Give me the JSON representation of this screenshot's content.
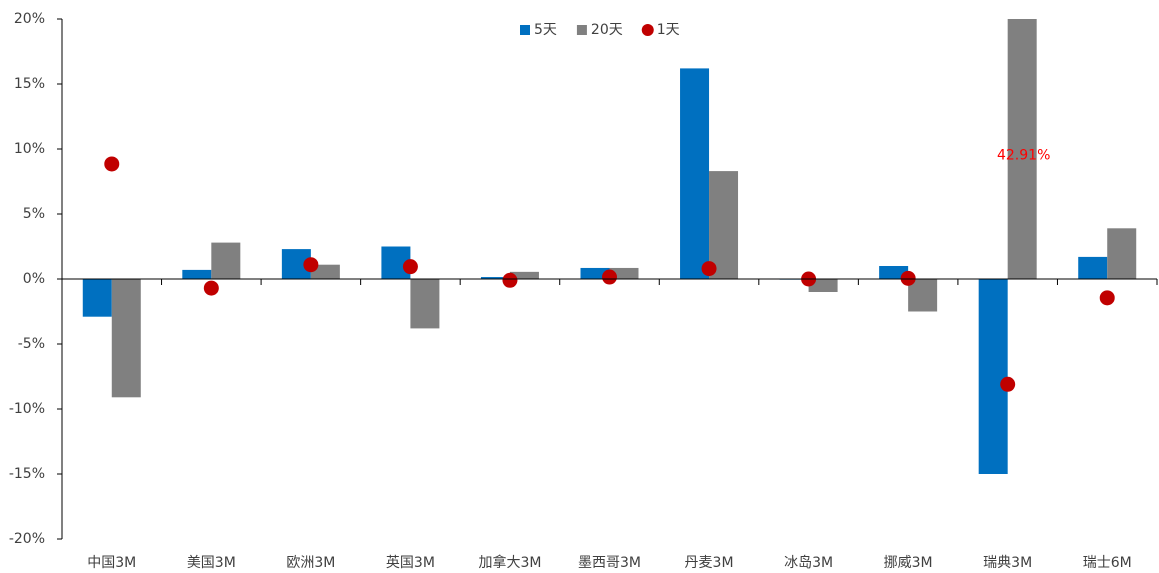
{
  "chart_data": {
    "type": "bar",
    "categories": [
      "中国3M",
      "美国3M",
      "欧洲3M",
      "英国3M",
      "加拿大3M",
      "墨西哥3M",
      "丹麦3M",
      "冰岛3M",
      "挪威3M",
      "瑞典3M",
      "瑞士6M"
    ],
    "series": [
      {
        "name": "5天",
        "type": "bar",
        "color": "#0070c0",
        "values": [
          -2.9,
          0.7,
          2.3,
          2.5,
          0.15,
          0.85,
          16.2,
          -0.05,
          1.0,
          -15.0,
          1.7
        ]
      },
      {
        "name": "20天",
        "type": "bar",
        "color": "#808080",
        "values": [
          -9.1,
          2.8,
          1.1,
          -3.8,
          0.55,
          0.85,
          8.3,
          -1.0,
          -2.5,
          42.91,
          3.9
        ],
        "value_labels": [
          null,
          null,
          null,
          null,
          null,
          null,
          null,
          null,
          null,
          "42.91%",
          null
        ]
      },
      {
        "name": "1天",
        "type": "scatter",
        "color": "#c00000",
        "values": [
          8.85,
          -0.7,
          1.1,
          0.95,
          -0.1,
          0.15,
          0.8,
          0,
          0.05,
          -8.1,
          -1.45
        ]
      }
    ],
    "ylim": [
      -20,
      20
    ],
    "yticks": [
      {
        "value": -20,
        "label": "-20%"
      },
      {
        "value": -15,
        "label": "-15%"
      },
      {
        "value": -10,
        "label": "-10%"
      },
      {
        "value": -5,
        "label": "-5%"
      },
      {
        "value": 0,
        "label": "0%"
      },
      {
        "value": 5,
        "label": "5%"
      },
      {
        "value": 10,
        "label": "10%"
      },
      {
        "value": 15,
        "label": "15%"
      },
      {
        "value": 20,
        "label": "20%"
      }
    ],
    "legend": "top"
  }
}
